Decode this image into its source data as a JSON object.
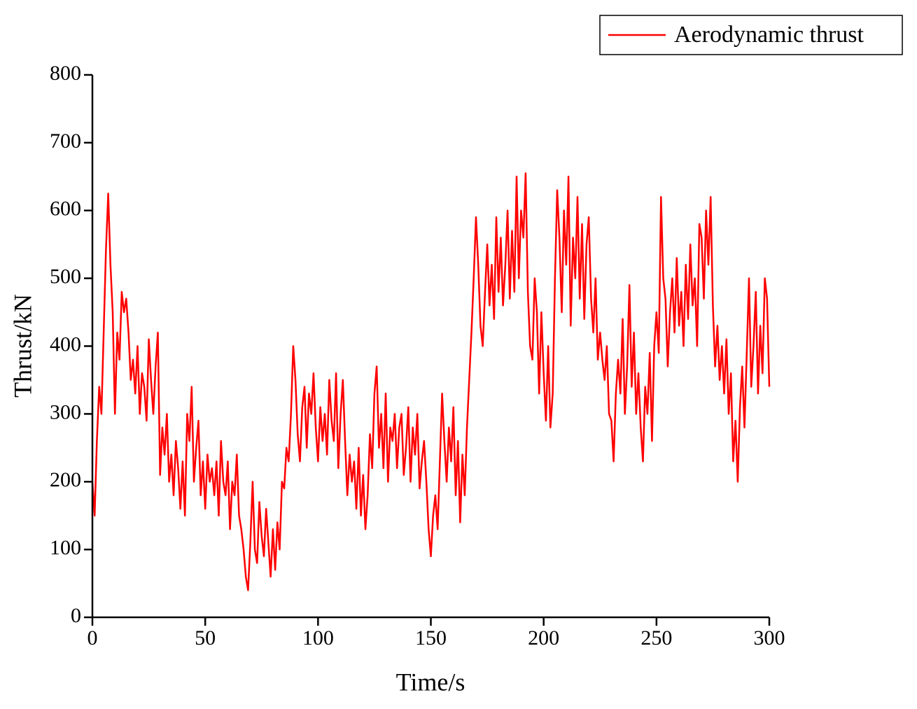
{
  "chart_data": {
    "type": "line",
    "xlabel": "Time/s",
    "ylabel": "Thrust/kN",
    "x": [
      0,
      1,
      2,
      3,
      4,
      5,
      6,
      7,
      8,
      9,
      10,
      11,
      12,
      13,
      14,
      15,
      16,
      17,
      18,
      19,
      20,
      21,
      22,
      23,
      24,
      25,
      26,
      27,
      28,
      29,
      30,
      31,
      32,
      33,
      34,
      35,
      36,
      37,
      38,
      39,
      40,
      41,
      42,
      43,
      44,
      45,
      46,
      47,
      48,
      49,
      50,
      51,
      52,
      53,
      54,
      55,
      56,
      57,
      58,
      59,
      60,
      61,
      62,
      63,
      64,
      65,
      66,
      67,
      68,
      69,
      70,
      71,
      72,
      73,
      74,
      75,
      76,
      77,
      78,
      79,
      80,
      81,
      82,
      83,
      84,
      85,
      86,
      87,
      88,
      89,
      90,
      91,
      92,
      93,
      94,
      95,
      96,
      97,
      98,
      99,
      100,
      101,
      102,
      103,
      104,
      105,
      106,
      107,
      108,
      109,
      110,
      111,
      112,
      113,
      114,
      115,
      116,
      117,
      118,
      119,
      120,
      121,
      122,
      123,
      124,
      125,
      126,
      127,
      128,
      129,
      130,
      131,
      132,
      133,
      134,
      135,
      136,
      137,
      138,
      139,
      140,
      141,
      142,
      143,
      144,
      145,
      146,
      147,
      148,
      149,
      150,
      151,
      152,
      153,
      154,
      155,
      156,
      157,
      158,
      159,
      160,
      161,
      162,
      163,
      164,
      165,
      166,
      167,
      168,
      169,
      170,
      171,
      172,
      173,
      174,
      175,
      176,
      177,
      178,
      179,
      180,
      181,
      182,
      183,
      184,
      185,
      186,
      187,
      188,
      189,
      190,
      191,
      192,
      193,
      194,
      195,
      196,
      197,
      198,
      199,
      200,
      201,
      202,
      203,
      204,
      205,
      206,
      207,
      208,
      209,
      210,
      211,
      212,
      213,
      214,
      215,
      216,
      217,
      218,
      219,
      220,
      221,
      222,
      223,
      224,
      225,
      226,
      227,
      228,
      229,
      230,
      231,
      232,
      233,
      234,
      235,
      236,
      237,
      238,
      239,
      240,
      241,
      242,
      243,
      244,
      245,
      246,
      247,
      248,
      249,
      250,
      251,
      252,
      253,
      254,
      255,
      256,
      257,
      258,
      259,
      260,
      261,
      262,
      263,
      264,
      265,
      266,
      267,
      268,
      269,
      270,
      271,
      272,
      273,
      274,
      275,
      276,
      277,
      278,
      279,
      280,
      281,
      282,
      283,
      284,
      285,
      286,
      287,
      288,
      289,
      290,
      291,
      292,
      293,
      294,
      295,
      296,
      297,
      298,
      299,
      300
    ],
    "series": [
      {
        "name": "Aerodynamic thrust",
        "color": "#ff0000",
        "values": [
          200,
          150,
          260,
          340,
          300,
          420,
          540,
          625,
          520,
          450,
          300,
          420,
          380,
          480,
          450,
          470,
          420,
          350,
          380,
          330,
          400,
          300,
          360,
          340,
          290,
          410,
          350,
          300,
          370,
          420,
          210,
          280,
          240,
          300,
          200,
          240,
          180,
          260,
          220,
          160,
          230,
          150,
          300,
          260,
          340,
          200,
          250,
          290,
          180,
          230,
          160,
          240,
          200,
          220,
          180,
          230,
          150,
          260,
          200,
          180,
          230,
          130,
          200,
          180,
          240,
          150,
          130,
          100,
          60,
          40,
          110,
          200,
          100,
          80,
          170,
          120,
          90,
          160,
          110,
          60,
          130,
          70,
          140,
          100,
          200,
          190,
          250,
          230,
          300,
          400,
          350,
          270,
          230,
          310,
          340,
          250,
          330,
          300,
          360,
          280,
          230,
          310,
          260,
          300,
          240,
          350,
          290,
          260,
          360,
          220,
          300,
          350,
          260,
          180,
          240,
          200,
          230,
          160,
          250,
          150,
          210,
          130,
          180,
          270,
          220,
          330,
          370,
          250,
          300,
          220,
          330,
          200,
          280,
          260,
          300,
          220,
          280,
          300,
          210,
          250,
          310,
          200,
          280,
          240,
          300,
          190,
          230,
          260,
          200,
          130,
          90,
          150,
          180,
          130,
          230,
          330,
          260,
          200,
          280,
          230,
          310,
          180,
          260,
          140,
          240,
          180,
          280,
          350,
          420,
          500,
          590,
          520,
          430,
          400,
          480,
          550,
          460,
          520,
          440,
          590,
          480,
          560,
          460,
          520,
          600,
          470,
          570,
          480,
          650,
          500,
          600,
          560,
          655,
          480,
          400,
          380,
          500,
          450,
          330,
          450,
          360,
          290,
          400,
          280,
          330,
          500,
          630,
          560,
          450,
          600,
          520,
          650,
          430,
          560,
          500,
          620,
          470,
          580,
          440,
          550,
          590,
          470,
          420,
          500,
          380,
          420,
          380,
          350,
          400,
          300,
          290,
          230,
          330,
          380,
          330,
          440,
          300,
          370,
          490,
          340,
          420,
          300,
          360,
          280,
          230,
          340,
          300,
          390,
          260,
          400,
          450,
          390,
          620,
          500,
          470,
          370,
          450,
          500,
          420,
          530,
          430,
          480,
          400,
          520,
          440,
          550,
          460,
          500,
          400,
          580,
          560,
          470,
          600,
          520,
          620,
          460,
          370,
          430,
          350,
          400,
          330,
          410,
          300,
          360,
          230,
          290,
          200,
          310,
          370,
          280,
          390,
          500,
          340,
          400,
          480,
          330,
          430,
          360,
          500,
          470,
          340
        ]
      }
    ],
    "xlim": [
      0,
      300
    ],
    "xticks": [
      0,
      50,
      100,
      150,
      200,
      250,
      300
    ],
    "ylim": [
      0,
      800
    ],
    "yticks": [
      0,
      100,
      200,
      300,
      400,
      500,
      600,
      700,
      800
    ],
    "grid": false,
    "legend": "upper right"
  }
}
